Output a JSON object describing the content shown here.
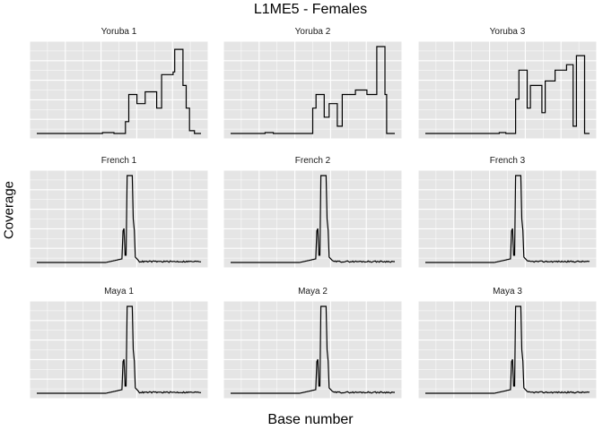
{
  "chart_data": {
    "type": "line",
    "title": "L1ME5 - Females",
    "xlabel": "Base number",
    "ylabel": "Coverage",
    "grid": true,
    "panels": [
      {
        "label": "Yoruba 1",
        "pattern": "yoruba",
        "variant": 1
      },
      {
        "label": "Yoruba 2",
        "pattern": "yoruba",
        "variant": 2
      },
      {
        "label": "Yoruba 3",
        "pattern": "yoruba",
        "variant": 3
      },
      {
        "label": "French 1",
        "pattern": "peak",
        "variant": 1
      },
      {
        "label": "French 2",
        "pattern": "peak",
        "variant": 2
      },
      {
        "label": "French 3",
        "pattern": "peak",
        "variant": 3
      },
      {
        "label": "Maya 1",
        "pattern": "peak",
        "variant": 1
      },
      {
        "label": "Maya 2",
        "pattern": "peak",
        "variant": 2
      },
      {
        "label": "Maya 3",
        "pattern": "peak",
        "variant": 3
      }
    ]
  },
  "colors": {
    "panel_bg": "#e5e5e5",
    "grid": "#ffffff",
    "line": "#000000"
  }
}
